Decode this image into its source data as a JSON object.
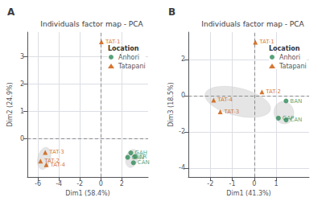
{
  "chart_data": [
    {
      "type": "scatter",
      "title": "Individuals factor map - PCA",
      "panel_label": "A",
      "xlabel": "Dim1 (58.4%)",
      "ylabel": "Dim2 (24.9%)",
      "xlim": [
        -7.0,
        4.5
      ],
      "ylim": [
        -1.4,
        3.9
      ],
      "xticks": [
        -6,
        -4,
        -2,
        0,
        2
      ],
      "yticks": [
        0,
        1,
        2,
        3
      ],
      "grid": true,
      "legend": "upper right",
      "legend_title": "Location",
      "hlines": [
        0
      ],
      "vlines": [
        0
      ],
      "ref_line_color": "#777777",
      "series": [
        {
          "name": "Anhori",
          "color": "#2E8B57",
          "marker": "circle",
          "x": [
            2.55,
            3.1,
            2.85,
            3.25
          ],
          "y": [
            -0.68,
            -0.88,
            -0.52,
            -0.65
          ],
          "labels": [
            "GAN",
            "CAN",
            "GAH",
            "CR"
          ]
        },
        {
          "name": "Tatapani",
          "color": "#CC5500",
          "marker": "triangle",
          "x": [
            0.05,
            -5.3,
            -5.75,
            -5.2
          ],
          "y": [
            3.55,
            -0.5,
            -0.82,
            -0.95
          ],
          "labels": [
            "TAT-1",
            "TAT-3",
            "TAT-2",
            "TAT-4"
          ]
        }
      ],
      "ellipse_color": "#CCCCCC",
      "ellipses": [
        {
          "cx": -5.4,
          "cy": -0.72,
          "rx": 0.65,
          "ry": 0.38,
          "angle": 15
        },
        {
          "cx": 2.95,
          "cy": -0.72,
          "rx": 0.6,
          "ry": 0.32,
          "angle": 10
        }
      ]
    },
    {
      "type": "scatter",
      "title": "Individuals factor map - PCA",
      "panel_label": "B",
      "xlabel": "Dim1 (41.3%)",
      "ylabel": "Dim3 (18.5%)",
      "xlim": [
        -3.0,
        2.5
      ],
      "ylim": [
        -4.5,
        3.5
      ],
      "xticks": [
        -2,
        -1,
        0,
        1
      ],
      "yticks": [
        -4,
        -2,
        0,
        2
      ],
      "grid": true,
      "legend": "upper right",
      "legend_title": "Location",
      "hlines": [
        0
      ],
      "vlines": [
        0
      ],
      "ref_line_color": "#777777",
      "series": [
        {
          "name": "Anhori",
          "color": "#2E8B57",
          "marker": "circle",
          "x": [
            1.45,
            1.1,
            1.45
          ],
          "y": [
            -0.3,
            -1.25,
            -1.35
          ],
          "labels": [
            "BAN",
            "GAP",
            "CAN"
          ]
        },
        {
          "name": "Tatapani",
          "color": "#CC5500",
          "marker": "triangle",
          "x": [
            0.05,
            0.35,
            -1.85,
            -1.55
          ],
          "y": [
            2.95,
            0.2,
            -0.25,
            -0.9
          ],
          "labels": [
            "TAT-1",
            "TAT-2",
            "TAT-4",
            "TAT-3"
          ]
        }
      ],
      "ellipse_color": "#CCCCCC",
      "ellipses": [
        {
          "cx": -0.75,
          "cy": -0.35,
          "rx": 1.55,
          "ry": 0.75,
          "angle": -18
        },
        {
          "cx": 1.35,
          "cy": -0.95,
          "rx": 0.45,
          "ry": 0.62,
          "angle": 5
        }
      ]
    }
  ]
}
